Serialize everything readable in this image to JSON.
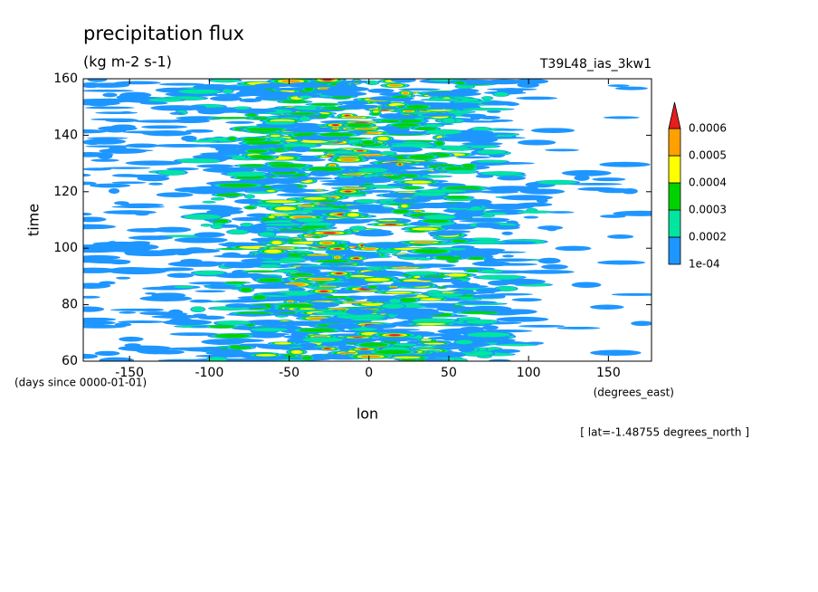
{
  "chart_data": {
    "type": "contour",
    "title": "precipitation flux",
    "subtitle": "(kg m-2 s-1)",
    "run_label": "T39L48_ias_3kw1",
    "x_label": "lon",
    "x_unit": "(degrees_east)",
    "y_label": "time",
    "y_unit": "(days since 0000-01-01)",
    "annotation": "[ lat=-1.48755 degrees_north ]",
    "xlim": [
      -179,
      177
    ],
    "xticks": [
      -150,
      -100,
      -50,
      0,
      50,
      100,
      150
    ],
    "ylim": [
      60,
      160
    ],
    "yticks": [
      60,
      80,
      100,
      120,
      140,
      160
    ],
    "levels": [
      {
        "value": 0.0001,
        "label": "1e-04"
      },
      0.0002,
      0.0003,
      0.0004,
      0.0005,
      0.0006
    ],
    "colors": [
      "#1e96ff",
      "#00e6a0",
      "#00d200",
      "#ffff00",
      "#ffa000",
      "#e61e1e"
    ]
  }
}
